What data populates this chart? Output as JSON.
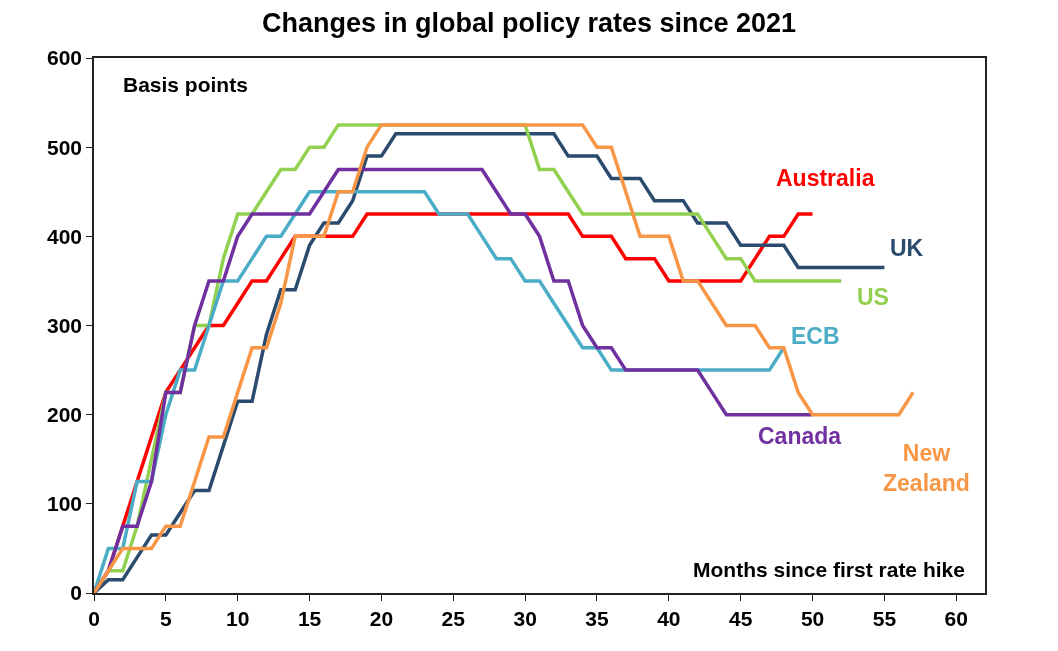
{
  "chart_data": {
    "type": "line",
    "title": "Changes in global policy rates since 2021",
    "xlabel": "Months since first rate hike",
    "ylabel": "Basis points",
    "x": [
      0,
      1,
      2,
      3,
      4,
      5,
      6,
      7,
      8,
      9,
      10,
      11,
      12,
      13,
      14,
      15,
      16,
      17,
      18,
      19,
      20,
      21,
      22,
      23,
      24,
      25,
      26,
      27,
      28,
      29,
      30,
      31,
      32,
      33,
      34,
      35,
      36,
      37,
      38,
      39,
      40,
      41,
      42,
      43,
      44,
      45,
      46,
      47,
      48,
      49,
      50,
      51,
      52,
      53,
      54,
      55,
      56,
      57
    ],
    "xlim": [
      0,
      62
    ],
    "xticks": [
      0,
      5,
      10,
      15,
      20,
      25,
      30,
      35,
      40,
      45,
      50,
      55,
      60
    ],
    "ylim": [
      0,
      600
    ],
    "yticks": [
      0,
      100,
      200,
      300,
      400,
      500,
      600
    ],
    "legend": false,
    "marker": "none",
    "line_style": "solid",
    "series": [
      {
        "name": "Australia",
        "color": "#ff0000",
        "values": [
          0,
          25,
          75,
          125,
          175,
          225,
          250,
          275,
          300,
          300,
          325,
          350,
          350,
          375,
          400,
          400,
          400,
          400,
          400,
          425,
          425,
          425,
          425,
          425,
          425,
          425,
          425,
          425,
          425,
          425,
          425,
          425,
          425,
          425,
          400,
          400,
          400,
          375,
          375,
          375,
          350,
          350,
          350,
          350,
          350,
          350,
          375,
          400,
          400,
          425,
          425,
          null,
          null,
          null,
          null,
          null,
          null,
          null
        ]
      },
      {
        "name": "UK",
        "color": "#2a4a6e",
        "values": [
          0,
          15,
          15,
          40,
          65,
          65,
          90,
          115,
          115,
          165,
          215,
          215,
          290,
          340,
          340,
          390,
          415,
          415,
          440,
          490,
          490,
          515,
          515,
          515,
          515,
          515,
          515,
          515,
          515,
          515,
          515,
          515,
          515,
          490,
          490,
          490,
          465,
          465,
          465,
          440,
          440,
          440,
          415,
          415,
          415,
          390,
          390,
          390,
          390,
          365,
          365,
          365,
          365,
          365,
          365,
          365,
          null,
          null
        ]
      },
      {
        "name": "US",
        "color": "#92d050",
        "values": [
          0,
          25,
          25,
          75,
          150,
          225,
          225,
          300,
          300,
          375,
          425,
          425,
          450,
          475,
          475,
          500,
          500,
          525,
          525,
          525,
          525,
          525,
          525,
          525,
          525,
          525,
          525,
          525,
          525,
          525,
          525,
          475,
          475,
          450,
          425,
          425,
          425,
          425,
          425,
          425,
          425,
          425,
          425,
          400,
          375,
          375,
          350,
          350,
          350,
          350,
          350,
          350,
          350,
          null,
          null,
          null,
          null,
          null
        ]
      },
      {
        "name": "ECB",
        "color": "#4bacc6",
        "values": [
          0,
          50,
          50,
          125,
          125,
          200,
          250,
          250,
          300,
          350,
          350,
          375,
          400,
          400,
          425,
          450,
          450,
          450,
          450,
          450,
          450,
          450,
          450,
          450,
          425,
          425,
          425,
          400,
          375,
          375,
          350,
          350,
          325,
          300,
          275,
          275,
          250,
          250,
          250,
          250,
          250,
          250,
          250,
          250,
          250,
          250,
          250,
          250,
          275,
          null,
          null,
          null,
          null,
          null,
          null,
          null,
          null,
          null
        ]
      },
      {
        "name": "Canada",
        "color": "#7030a0",
        "values": [
          0,
          25,
          75,
          75,
          125,
          225,
          225,
          300,
          350,
          350,
          400,
          425,
          425,
          425,
          425,
          425,
          450,
          475,
          475,
          475,
          475,
          475,
          475,
          475,
          475,
          475,
          475,
          475,
          450,
          425,
          425,
          400,
          350,
          350,
          300,
          275,
          275,
          250,
          250,
          250,
          250,
          250,
          250,
          225,
          200,
          200,
          200,
          200,
          200,
          200,
          200,
          null,
          null,
          null,
          null,
          null,
          null,
          null
        ]
      },
      {
        "name": "New Zealand",
        "color": "#f79646",
        "values": [
          0,
          25,
          50,
          50,
          50,
          75,
          75,
          125,
          175,
          175,
          225,
          275,
          275,
          325,
          400,
          400,
          400,
          450,
          450,
          500,
          525,
          525,
          525,
          525,
          525,
          525,
          525,
          525,
          525,
          525,
          525,
          525,
          525,
          525,
          525,
          500,
          500,
          450,
          400,
          400,
          400,
          350,
          350,
          325,
          300,
          300,
          300,
          275,
          275,
          225,
          200,
          200,
          200,
          200,
          200,
          200,
          200,
          225
        ]
      }
    ]
  }
}
